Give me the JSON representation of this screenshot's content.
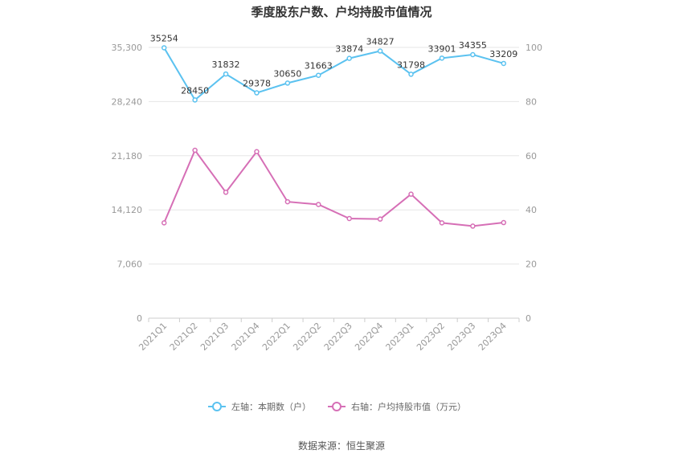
{
  "chart_data": {
    "type": "line",
    "title": "季度股东户数、户均持股市值情况",
    "categories": [
      "2021Q1",
      "2021Q2",
      "2021Q3",
      "2021Q4",
      "2022Q1",
      "2022Q2",
      "2022Q3",
      "2022Q4",
      "2023Q1",
      "2023Q2",
      "2023Q3",
      "2023Q4"
    ],
    "left_axis": {
      "ticks": [
        "0",
        "7,060",
        "14,120",
        "21,180",
        "28,240",
        "35,300"
      ],
      "min": 0,
      "max": 35300
    },
    "right_axis": {
      "ticks": [
        "0",
        "20",
        "40",
        "60",
        "80",
        "100"
      ],
      "min": 0,
      "max": 100
    },
    "series": [
      {
        "name": "左轴：本期数（户）",
        "axis": "left",
        "color": "#5bc2f0",
        "values": [
          35254,
          28450,
          31832,
          29378,
          30650,
          31663,
          33874,
          34827,
          31798,
          33901,
          34355,
          33209
        ],
        "labels": [
          "35254",
          "28450",
          "31832",
          "29378",
          "30650",
          "31663",
          "33874",
          "34827",
          "31798",
          "33901",
          "34355",
          "33209"
        ]
      },
      {
        "name": "右轴：户均持股市值（万元）",
        "axis": "right",
        "color": "#d66fb6",
        "values": [
          35.2,
          62.0,
          46.5,
          61.5,
          43.0,
          42.0,
          36.8,
          36.6,
          45.8,
          35.2,
          34.0,
          35.3
        ]
      }
    ],
    "grid": true,
    "legend_position": "bottom"
  },
  "footer": {
    "source": "数据来源：恒生聚源"
  }
}
